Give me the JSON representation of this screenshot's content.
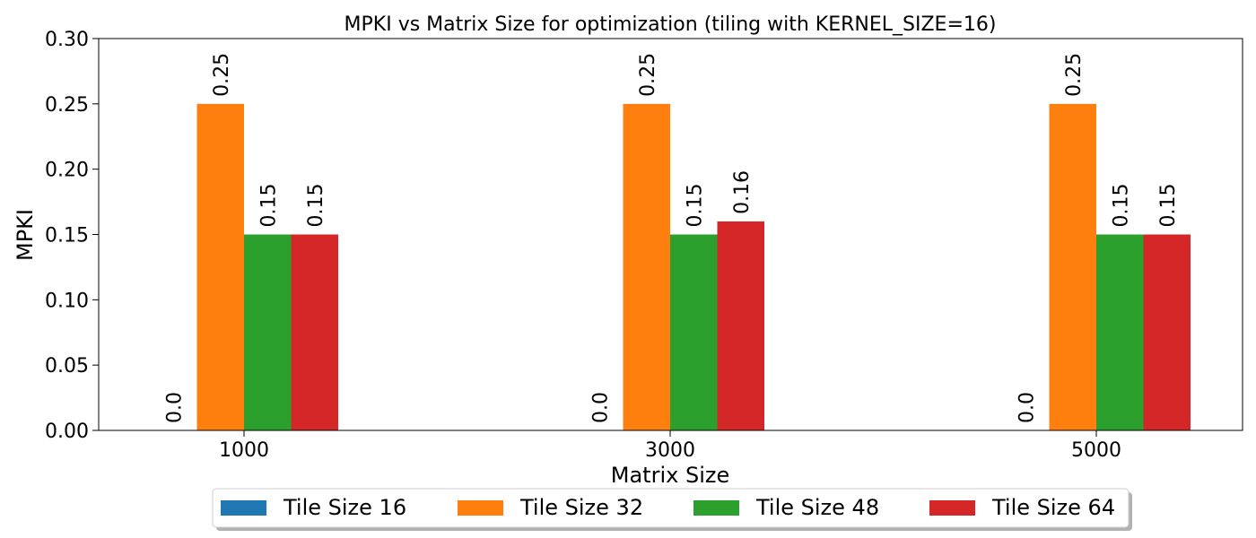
{
  "chart_data": {
    "type": "bar",
    "title": "MPKI vs Matrix Size for optimization (tiling with KERNEL_SIZE=16)",
    "xlabel": "Matrix Size",
    "ylabel": "MPKI",
    "categories": [
      "1000",
      "3000",
      "5000"
    ],
    "series": [
      {
        "name": "Tile Size 16",
        "color": "#1f77b4",
        "values": [
          0.0,
          0.0,
          0.0
        ],
        "labels": [
          "0.0",
          "0.0",
          "0.0"
        ]
      },
      {
        "name": "Tile Size 32",
        "color": "#ff7f0e",
        "values": [
          0.25,
          0.25,
          0.25
        ],
        "labels": [
          "0.25",
          "0.25",
          "0.25"
        ]
      },
      {
        "name": "Tile Size 48",
        "color": "#2ca02c",
        "values": [
          0.15,
          0.15,
          0.15
        ],
        "labels": [
          "0.15",
          "0.15",
          "0.15"
        ]
      },
      {
        "name": "Tile Size 64",
        "color": "#d62728",
        "values": [
          0.15,
          0.16,
          0.15
        ],
        "labels": [
          "0.15",
          "0.16",
          "0.15"
        ]
      }
    ],
    "ylim": [
      0,
      0.3
    ],
    "yticks": [
      "0.00",
      "0.05",
      "0.10",
      "0.15",
      "0.20",
      "0.25",
      "0.30"
    ],
    "grid": false,
    "legend_position": "bottom-center"
  }
}
